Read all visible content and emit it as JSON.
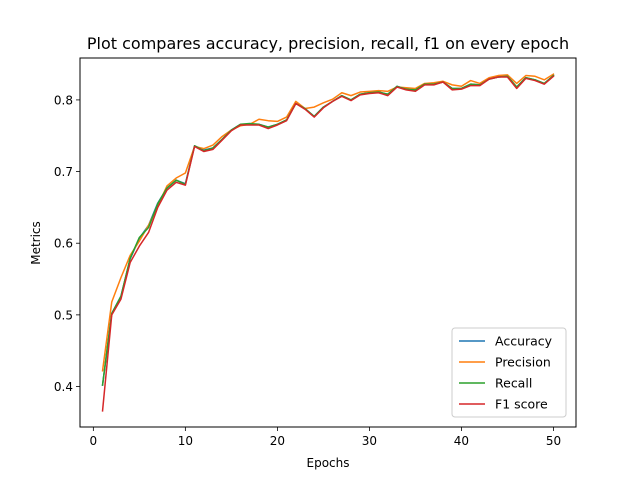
{
  "chart_data": {
    "type": "line",
    "title": "Plot compares accuracy, precision, recall, f1 on every epoch",
    "xlabel": "Epochs",
    "ylabel": "Metrics",
    "xlim": [
      -1.45,
      52.45
    ],
    "ylim": [
      0.3435,
      0.8585
    ],
    "xticks": [
      0,
      10,
      20,
      30,
      40,
      50
    ],
    "yticks": [
      0.4,
      0.5,
      0.6,
      0.7,
      0.8
    ],
    "xtick_labels": [
      "0",
      "10",
      "20",
      "30",
      "40",
      "50"
    ],
    "ytick_labels": [
      "0.4",
      "0.5",
      "0.6",
      "0.7",
      "0.8"
    ],
    "grid": false,
    "legend_position": "lower-right",
    "x": [
      1,
      2,
      3,
      4,
      5,
      6,
      7,
      8,
      9,
      10,
      11,
      12,
      13,
      14,
      15,
      16,
      17,
      18,
      19,
      20,
      21,
      22,
      23,
      24,
      25,
      26,
      27,
      28,
      29,
      30,
      31,
      32,
      33,
      34,
      35,
      36,
      37,
      38,
      39,
      40,
      41,
      42,
      43,
      44,
      45,
      46,
      47,
      48,
      49,
      50
    ],
    "series": [
      {
        "name": "Accuracy",
        "color": "#1f77b4",
        "values": [
          0.402,
          0.502,
          0.526,
          0.578,
          0.607,
          0.625,
          0.656,
          0.677,
          0.688,
          0.683,
          0.736,
          0.73,
          0.733,
          0.745,
          0.758,
          0.766,
          0.766,
          0.766,
          0.762,
          0.766,
          0.772,
          0.795,
          0.788,
          0.777,
          0.79,
          0.798,
          0.806,
          0.8,
          0.808,
          0.81,
          0.811,
          0.808,
          0.819,
          0.815,
          0.813,
          0.822,
          0.822,
          0.825,
          0.816,
          0.816,
          0.822,
          0.821,
          0.829,
          0.832,
          0.833,
          0.818,
          0.831,
          0.828,
          0.823,
          0.834
        ]
      },
      {
        "name": "Precision",
        "color": "#ff7f0e",
        "values": [
          0.422,
          0.518,
          0.552,
          0.583,
          0.603,
          0.625,
          0.652,
          0.68,
          0.691,
          0.698,
          0.735,
          0.732,
          0.737,
          0.749,
          0.758,
          0.764,
          0.766,
          0.773,
          0.771,
          0.77,
          0.776,
          0.798,
          0.788,
          0.79,
          0.796,
          0.801,
          0.81,
          0.806,
          0.811,
          0.812,
          0.813,
          0.812,
          0.818,
          0.817,
          0.816,
          0.823,
          0.824,
          0.826,
          0.821,
          0.819,
          0.827,
          0.823,
          0.831,
          0.834,
          0.835,
          0.823,
          0.834,
          0.833,
          0.828,
          0.836
        ]
      },
      {
        "name": "Recall",
        "color": "#2ca02c",
        "values": [
          0.402,
          0.502,
          0.526,
          0.579,
          0.608,
          0.622,
          0.655,
          0.677,
          0.688,
          0.682,
          0.736,
          0.729,
          0.733,
          0.745,
          0.758,
          0.766,
          0.767,
          0.766,
          0.762,
          0.766,
          0.772,
          0.795,
          0.788,
          0.777,
          0.79,
          0.798,
          0.806,
          0.8,
          0.808,
          0.81,
          0.811,
          0.808,
          0.819,
          0.815,
          0.814,
          0.822,
          0.822,
          0.825,
          0.816,
          0.816,
          0.822,
          0.821,
          0.829,
          0.832,
          0.833,
          0.818,
          0.831,
          0.828,
          0.823,
          0.834
        ]
      },
      {
        "name": "F1 score",
        "color": "#d62728",
        "values": [
          0.366,
          0.5,
          0.522,
          0.573,
          0.596,
          0.615,
          0.65,
          0.674,
          0.685,
          0.681,
          0.735,
          0.728,
          0.731,
          0.744,
          0.757,
          0.765,
          0.765,
          0.765,
          0.76,
          0.765,
          0.771,
          0.795,
          0.787,
          0.776,
          0.789,
          0.798,
          0.805,
          0.799,
          0.807,
          0.809,
          0.81,
          0.806,
          0.818,
          0.814,
          0.812,
          0.821,
          0.821,
          0.825,
          0.814,
          0.815,
          0.82,
          0.82,
          0.829,
          0.832,
          0.832,
          0.816,
          0.83,
          0.827,
          0.822,
          0.833
        ]
      }
    ]
  }
}
